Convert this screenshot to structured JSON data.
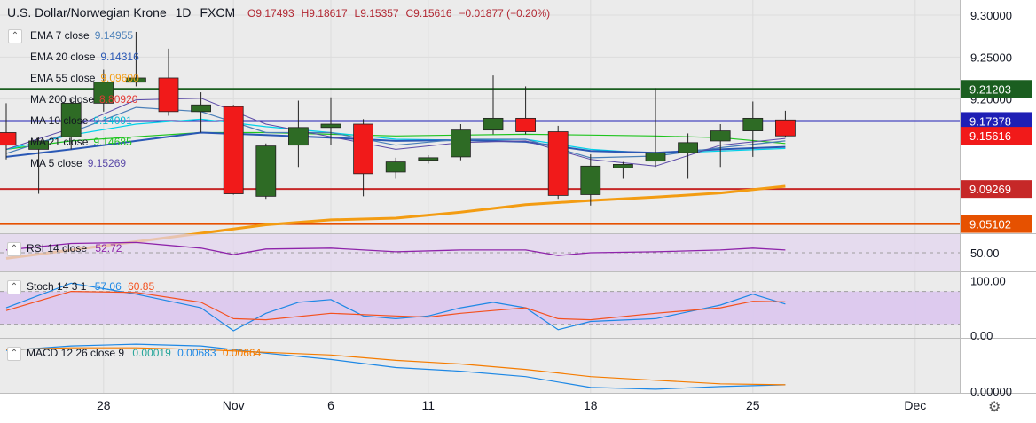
{
  "header": {
    "title": "U.S. Dollar/Norwegian Krone",
    "interval": "1D",
    "source": "FXCM",
    "open": "O9.17493",
    "high": "H9.18617",
    "low": "L9.15357",
    "close": "C9.15616",
    "change": "−0.01877 (−0.20%)"
  },
  "legend": [
    {
      "label": "EMA 7 close",
      "value": "9.14955",
      "color": "#4a7fb8"
    },
    {
      "label": "EMA 20 close",
      "value": "9.14316",
      "color": "#2a58b5"
    },
    {
      "label": "EMA 55 close",
      "value": "9.09600",
      "color": "#f39c12"
    },
    {
      "label": "MA 200 close",
      "value": "8.80920",
      "color": "#e53935"
    },
    {
      "label": "MA 10 close",
      "value": "9.14091",
      "color": "#00d1ea"
    },
    {
      "label": "MA 21 close",
      "value": "9.14685",
      "color": "#1ec41e"
    },
    {
      "label": "MA 5 close",
      "value": "9.15269",
      "color": "#5b4aa8"
    }
  ],
  "colors": {
    "up": "#2e6b25",
    "down": "#f11a1a",
    "bg": "#ebebeb",
    "resistance": "#1b5e20",
    "blue_line": "#1f1fb5",
    "red_line": "#c62828",
    "ema7": "#4a7fb8",
    "ema20": "#2a58b5",
    "ema55": "#f39c12",
    "ma10": "#00d1ea",
    "ma21": "#1ec41e",
    "ma5": "#5b4aa8",
    "rsi": "#8e24aa",
    "stoch_k": "#1e88e5",
    "stoch_d": "#f4511e",
    "macd": "#1e88e5",
    "signal": "#f57c00"
  },
  "price_axis": {
    "ticks": [
      "9.30000",
      "9.25000",
      "9.20000"
    ],
    "tick_values": [
      9.3,
      9.25,
      9.2
    ],
    "ylim": [
      9.04,
      9.318
    ]
  },
  "price_labels": [
    {
      "text": "9.21203",
      "value": 9.21203,
      "bg": "#1b5e20",
      "fg": "#ffffff"
    },
    {
      "text": "9.17378",
      "value": 9.17378,
      "bg": "#1f1fb5",
      "fg": "#ffffff"
    },
    {
      "text": "9.15616",
      "value": 9.15616,
      "bg": "#f11a1a",
      "fg": "#ffffff"
    },
    {
      "text": "9.09269",
      "value": 9.09269,
      "bg": "#c62828",
      "fg": "#ffffff"
    },
    {
      "text": "9.05102",
      "value": 9.05102,
      "bg": "#e65100",
      "fg": "#ffffff"
    }
  ],
  "horizontal_lines": [
    {
      "value": 9.21203,
      "color": "#1b5e20"
    },
    {
      "value": 9.17378,
      "color": "#1f1fb5"
    },
    {
      "value": 9.09269,
      "color": "#c62828"
    },
    {
      "value": 9.05102,
      "color": "#e65100"
    }
  ],
  "x_axis": {
    "ticks": [
      {
        "label": "28",
        "day": 3
      },
      {
        "label": "Nov",
        "day": 7
      },
      {
        "label": "6",
        "day": 10
      },
      {
        "label": "11",
        "day": 13
      },
      {
        "label": "18",
        "day": 18
      },
      {
        "label": "25",
        "day": 23
      },
      {
        "label": "Dec",
        "day": 28
      }
    ]
  },
  "chart_data": {
    "type": "candlestick",
    "title": "U.S. Dollar/Norwegian Krone",
    "candles": [
      {
        "day": 0,
        "open": 9.16,
        "high": 9.195,
        "low": 9.128,
        "close": 9.145
      },
      {
        "day": 1,
        "open": 9.14,
        "high": 9.155,
        "low": 9.087,
        "close": 9.15
      },
      {
        "day": 2,
        "open": 9.155,
        "high": 9.2,
        "low": 9.14,
        "close": 9.195
      },
      {
        "day": 3,
        "open": 9.195,
        "high": 9.235,
        "low": 9.185,
        "close": 9.22
      },
      {
        "day": 4,
        "open": 9.22,
        "high": 9.28,
        "low": 9.215,
        "close": 9.225
      },
      {
        "day": 5,
        "open": 9.225,
        "high": 9.26,
        "low": 9.18,
        "close": 9.185
      },
      {
        "day": 6,
        "open": 9.185,
        "high": 9.208,
        "low": 9.16,
        "close": 9.193
      },
      {
        "day": 7,
        "open": 9.191,
        "high": 9.193,
        "low": 9.086,
        "close": 9.087
      },
      {
        "day": 8,
        "open": 9.084,
        "high": 9.147,
        "low": 9.081,
        "close": 9.144
      },
      {
        "day": 9,
        "open": 9.145,
        "high": 9.198,
        "low": 9.119,
        "close": 9.166
      },
      {
        "day": 10,
        "open": 9.166,
        "high": 9.202,
        "low": 9.145,
        "close": 9.17
      },
      {
        "day": 11,
        "open": 9.17,
        "high": 9.176,
        "low": 9.084,
        "close": 9.111
      },
      {
        "day": 12,
        "open": 9.113,
        "high": 9.13,
        "low": 9.105,
        "close": 9.125
      },
      {
        "day": 13,
        "open": 9.127,
        "high": 9.133,
        "low": 9.123,
        "close": 9.13
      },
      {
        "day": 14,
        "open": 9.131,
        "high": 9.17,
        "low": 9.127,
        "close": 9.163
      },
      {
        "day": 15,
        "open": 9.163,
        "high": 9.228,
        "low": 9.158,
        "close": 9.177
      },
      {
        "day": 16,
        "open": 9.177,
        "high": 9.215,
        "low": 9.158,
        "close": 9.161
      },
      {
        "day": 17,
        "open": 9.161,
        "high": 9.168,
        "low": 9.081,
        "close": 9.085
      },
      {
        "day": 18,
        "open": 9.086,
        "high": 9.134,
        "low": 9.073,
        "close": 9.12
      },
      {
        "day": 19,
        "open": 9.118,
        "high": 9.125,
        "low": 9.105,
        "close": 9.122
      },
      {
        "day": 20,
        "open": 9.126,
        "high": 9.213,
        "low": 9.119,
        "close": 9.136
      },
      {
        "day": 21,
        "open": 9.136,
        "high": 9.159,
        "low": 9.105,
        "close": 9.148
      },
      {
        "day": 22,
        "open": 9.15,
        "high": 9.17,
        "low": 9.119,
        "close": 9.162
      },
      {
        "day": 23,
        "open": 9.162,
        "high": 9.197,
        "low": 9.131,
        "close": 9.177
      },
      {
        "day": 24,
        "open": 9.175,
        "high": 9.186,
        "low": 9.154,
        "close": 9.156
      }
    ],
    "ema55": [
      [
        0,
        9.01
      ],
      [
        2,
        9.02
      ],
      [
        4,
        9.03
      ],
      [
        6,
        9.04
      ],
      [
        8,
        9.05
      ],
      [
        10,
        9.056
      ],
      [
        12,
        9.058
      ],
      [
        14,
        9.065
      ],
      [
        16,
        9.074
      ],
      [
        18,
        9.079
      ],
      [
        20,
        9.083
      ],
      [
        22,
        9.088
      ],
      [
        24,
        9.096
      ]
    ],
    "ma21": [
      [
        0,
        9.14
      ],
      [
        2,
        9.15
      ],
      [
        4,
        9.155
      ],
      [
        6,
        9.16
      ],
      [
        8,
        9.16
      ],
      [
        10,
        9.158
      ],
      [
        12,
        9.156
      ],
      [
        14,
        9.157
      ],
      [
        16,
        9.158
      ],
      [
        18,
        9.157
      ],
      [
        20,
        9.156
      ],
      [
        22,
        9.154
      ],
      [
        24,
        9.147
      ]
    ],
    "ma10": [
      [
        0,
        9.14
      ],
      [
        2,
        9.157
      ],
      [
        4,
        9.17
      ],
      [
        6,
        9.176
      ],
      [
        8,
        9.167
      ],
      [
        10,
        9.16
      ],
      [
        12,
        9.152
      ],
      [
        14,
        9.151
      ],
      [
        16,
        9.152
      ],
      [
        18,
        9.14
      ],
      [
        20,
        9.135
      ],
      [
        22,
        9.138
      ],
      [
        24,
        9.141
      ]
    ],
    "ema20": [
      [
        0,
        9.131
      ],
      [
        2,
        9.14
      ],
      [
        4,
        9.15
      ],
      [
        6,
        9.16
      ],
      [
        8,
        9.157
      ],
      [
        10,
        9.154
      ],
      [
        12,
        9.15
      ],
      [
        14,
        9.151
      ],
      [
        16,
        9.149
      ],
      [
        18,
        9.138
      ],
      [
        20,
        9.136
      ],
      [
        22,
        9.14
      ],
      [
        24,
        9.143
      ]
    ],
    "ema7": [
      [
        0,
        9.135
      ],
      [
        2,
        9.16
      ],
      [
        4,
        9.19
      ],
      [
        6,
        9.185
      ],
      [
        8,
        9.16
      ],
      [
        10,
        9.16
      ],
      [
        12,
        9.145
      ],
      [
        14,
        9.152
      ],
      [
        16,
        9.152
      ],
      [
        18,
        9.13
      ],
      [
        20,
        9.132
      ],
      [
        22,
        9.142
      ],
      [
        24,
        9.15
      ]
    ],
    "ma5": [
      [
        0,
        9.14
      ],
      [
        2,
        9.165
      ],
      [
        4,
        9.199
      ],
      [
        6,
        9.201
      ],
      [
        8,
        9.17
      ],
      [
        10,
        9.155
      ],
      [
        12,
        9.14
      ],
      [
        14,
        9.148
      ],
      [
        16,
        9.15
      ],
      [
        18,
        9.128
      ],
      [
        20,
        9.12
      ],
      [
        22,
        9.145
      ],
      [
        24,
        9.153
      ]
    ]
  },
  "rsi": {
    "label": "RSI 14 close",
    "value": "52.72",
    "tick": "50.00",
    "ylim": [
      30,
      70
    ],
    "points": [
      [
        0,
        53
      ],
      [
        2,
        60
      ],
      [
        4,
        61
      ],
      [
        6,
        55
      ],
      [
        7,
        48
      ],
      [
        8,
        54
      ],
      [
        10,
        55
      ],
      [
        12,
        51
      ],
      [
        14,
        53
      ],
      [
        16,
        53
      ],
      [
        17,
        47
      ],
      [
        18,
        50
      ],
      [
        20,
        51
      ],
      [
        22,
        53
      ],
      [
        23,
        55
      ],
      [
        24,
        53
      ]
    ]
  },
  "stoch": {
    "label": "Stoch 14 3 1",
    "k_value": "57.06",
    "d_value": "60.85",
    "ticks": [
      "100.00",
      "0.00"
    ],
    "ylim": [
      -5,
      115
    ],
    "k": [
      [
        0,
        50
      ],
      [
        2,
        95
      ],
      [
        4,
        75
      ],
      [
        6,
        50
      ],
      [
        7,
        8
      ],
      [
        8,
        40
      ],
      [
        9,
        60
      ],
      [
        10,
        65
      ],
      [
        11,
        35
      ],
      [
        12,
        30
      ],
      [
        13,
        35
      ],
      [
        14,
        50
      ],
      [
        15,
        60
      ],
      [
        16,
        50
      ],
      [
        17,
        10
      ],
      [
        18,
        25
      ],
      [
        20,
        30
      ],
      [
        22,
        55
      ],
      [
        23,
        75
      ],
      [
        24,
        57
      ]
    ],
    "d": [
      [
        0,
        45
      ],
      [
        2,
        80
      ],
      [
        4,
        78
      ],
      [
        6,
        60
      ],
      [
        7,
        30
      ],
      [
        8,
        28
      ],
      [
        10,
        40
      ],
      [
        12,
        35
      ],
      [
        13,
        33
      ],
      [
        14,
        40
      ],
      [
        15,
        45
      ],
      [
        16,
        50
      ],
      [
        17,
        30
      ],
      [
        18,
        28
      ],
      [
        20,
        40
      ],
      [
        22,
        50
      ],
      [
        23,
        62
      ],
      [
        24,
        61
      ]
    ]
  },
  "macd": {
    "label": "MACD 12 26 close 9",
    "hist": "0.00019",
    "macd_value": "0.00683",
    "signal_value": "0.00664",
    "tick": "0.00000",
    "ylim": [
      -0.002,
      0.058
    ],
    "macd_line": [
      [
        0,
        0.045
      ],
      [
        2,
        0.05
      ],
      [
        4,
        0.052
      ],
      [
        6,
        0.05
      ],
      [
        8,
        0.042
      ],
      [
        10,
        0.035
      ],
      [
        12,
        0.026
      ],
      [
        14,
        0.022
      ],
      [
        16,
        0.016
      ],
      [
        18,
        0.004
      ],
      [
        20,
        0.002
      ],
      [
        22,
        0.005
      ],
      [
        24,
        0.007
      ]
    ],
    "signal_line": [
      [
        0,
        0.046
      ],
      [
        2,
        0.048
      ],
      [
        4,
        0.048
      ],
      [
        6,
        0.046
      ],
      [
        8,
        0.043
      ],
      [
        10,
        0.04
      ],
      [
        12,
        0.034
      ],
      [
        14,
        0.03
      ],
      [
        16,
        0.024
      ],
      [
        18,
        0.016
      ],
      [
        20,
        0.012
      ],
      [
        22,
        0.008
      ],
      [
        24,
        0.007
      ]
    ]
  }
}
